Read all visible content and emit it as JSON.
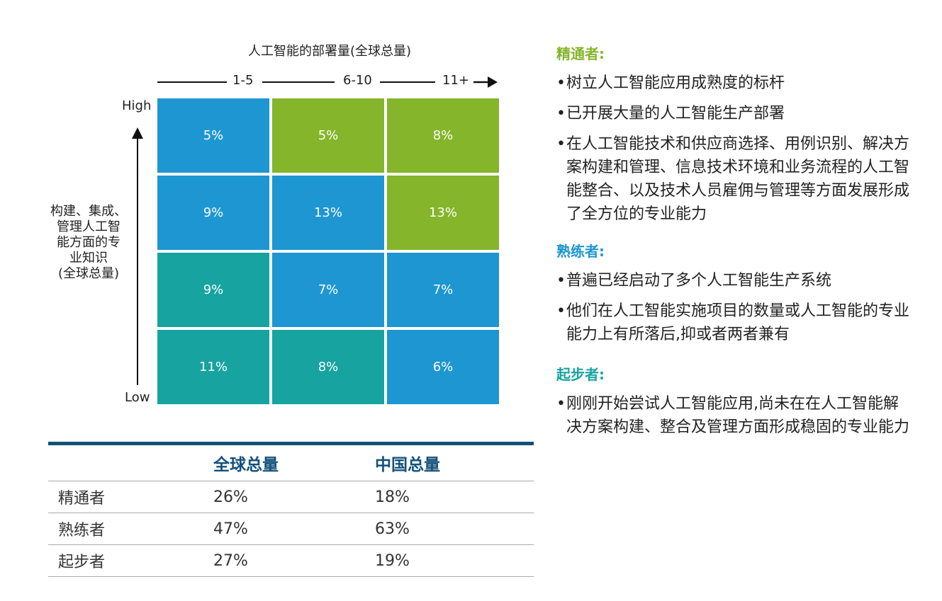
{
  "chart_data": {
    "type": "heatmap",
    "title": "人工智能的部署量(全球总量)",
    "x_categories": [
      "1-5",
      "6-10",
      "11+"
    ],
    "y_label": "构建、集成、管理人工智能方面的专业知识(全球总量)",
    "y_label_lines": [
      "构建、集成、",
      "管理人工智",
      "能方面的专",
      "业知识",
      "(全球总量)"
    ],
    "y_high": "High",
    "y_low": "Low",
    "rows_top_to_bottom": [
      {
        "values": [
          "5%",
          "5%",
          "8%"
        ],
        "colors": [
          "#1e96d1",
          "#84b52a",
          "#84b52a"
        ]
      },
      {
        "values": [
          "9%",
          "13%",
          "13%"
        ],
        "colors": [
          "#1e96d1",
          "#1e96d1",
          "#84b52a"
        ]
      },
      {
        "values": [
          "9%",
          "7%",
          "7%"
        ],
        "colors": [
          "#17a3a0",
          "#1e96d1",
          "#1e96d1"
        ]
      },
      {
        "values": [
          "11%",
          "8%",
          "6%"
        ],
        "colors": [
          "#17a3a0",
          "#17a3a0",
          "#1e96d1"
        ]
      }
    ]
  },
  "table": {
    "headers": [
      "",
      "全球总量",
      "中国总量"
    ],
    "rows": [
      [
        "精通者",
        "26%",
        "18%"
      ],
      [
        "熟练者",
        "47%",
        "63%"
      ],
      [
        "起步者",
        "27%",
        "19%"
      ]
    ]
  },
  "panel": {
    "sections": [
      {
        "title": "精通者:",
        "color": "#84b52a",
        "bullets": [
          "树立人工智能应用成熟度的标杆",
          "已开展大量的人工智能生产部署",
          "在人工智能技术和供应商选择、用例识别、解决方案构建和管理、信息技术环境和业务流程的人工智能整合、以及技术人员雇佣与管理等方面发展形成了全方位的专业能力"
        ]
      },
      {
        "title": "熟练者:",
        "color": "#1e96d1",
        "bullets": [
          "普遍已经启动了多个人工智能生产系统",
          "他们在人工智能实施项目的数量或人工智能的专业能力上有所落后,抑或者两者兼有"
        ]
      },
      {
        "title": "起步者:",
        "color": "#17a3a0",
        "bullets": [
          "刚刚开始尝试人工智能应用,尚未在在人工智能解决方案构建、整合及管理方面形成稳固的专业能力"
        ]
      }
    ]
  }
}
